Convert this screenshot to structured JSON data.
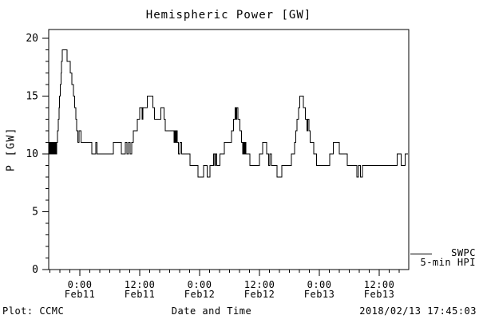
{
  "title": "Hemispheric Power [GW]",
  "axes": {
    "y_label": "P [GW]",
    "x_label": "Date and Time"
  },
  "footer": {
    "plot_source": "Plot: CCMC",
    "timestamp": "2018/02/13 17:45:03"
  },
  "legend": {
    "line1": "SWPC",
    "line2": "5-min HPI"
  },
  "colors": {
    "line": "#000000",
    "background": "#ffffff",
    "axis": "#000000"
  },
  "chart_data": {
    "type": "line",
    "title": "Hemispheric Power [GW]",
    "xlabel": "Date and Time",
    "ylabel": "P [GW]",
    "ylim": [
      0,
      20.75
    ],
    "y_major_ticks": [
      0,
      5,
      10,
      15,
      20
    ],
    "y_minor_step": 1,
    "x_range_hours": [
      0,
      72
    ],
    "x_window": "2018/02/10 17:45 to 2018/02/13 17:45",
    "x_minor_first_hour": 0.25,
    "x_minor_step_hours": 2,
    "x_major_ticks": [
      {
        "hour": 6.25,
        "time": "0:00",
        "date": "Feb11"
      },
      {
        "hour": 18.25,
        "time": "12:00",
        "date": "Feb11"
      },
      {
        "hour": 30.25,
        "time": "0:00",
        "date": "Feb12"
      },
      {
        "hour": 42.25,
        "time": "12:00",
        "date": "Feb12"
      },
      {
        "hour": 54.25,
        "time": "0:00",
        "date": "Feb13"
      },
      {
        "hour": 66.25,
        "time": "12:00",
        "date": "Feb13"
      }
    ],
    "grid": false,
    "legend_position": "outside-right-bottom",
    "series": [
      {
        "name": "SWPC 5-min HPI",
        "units": "GW",
        "points_format": "[hours_since_window_start, power_gw] step series",
        "points": [
          [
            0,
            10
          ],
          [
            0.16,
            11
          ],
          [
            0.32,
            10
          ],
          [
            0.48,
            11
          ],
          [
            0.64,
            10
          ],
          [
            0.8,
            11
          ],
          [
            0.96,
            10
          ],
          [
            1.12,
            11
          ],
          [
            1.28,
            10
          ],
          [
            1.44,
            11
          ],
          [
            1.55,
            10
          ],
          [
            1.6,
            11
          ],
          [
            1.76,
            12
          ],
          [
            1.92,
            13
          ],
          [
            2.08,
            14
          ],
          [
            2.16,
            15
          ],
          [
            2.32,
            16
          ],
          [
            2.48,
            17
          ],
          [
            2.56,
            18
          ],
          [
            2.72,
            19
          ],
          [
            3.68,
            18
          ],
          [
            4.32,
            17
          ],
          [
            4.64,
            16
          ],
          [
            4.96,
            15
          ],
          [
            5.2,
            14
          ],
          [
            5.44,
            13
          ],
          [
            5.6,
            12
          ],
          [
            5.84,
            11
          ],
          [
            6.08,
            12
          ],
          [
            6.48,
            11
          ],
          [
            8.64,
            10
          ],
          [
            9.44,
            11
          ],
          [
            9.68,
            10
          ],
          [
            12.96,
            11
          ],
          [
            14.56,
            10
          ],
          [
            15.36,
            11
          ],
          [
            15.68,
            10
          ],
          [
            16.0,
            11
          ],
          [
            16.32,
            10
          ],
          [
            16.64,
            11
          ],
          [
            16.96,
            12
          ],
          [
            17.76,
            13
          ],
          [
            18.24,
            14
          ],
          [
            18.72,
            13
          ],
          [
            18.88,
            14
          ],
          [
            19.76,
            15
          ],
          [
            20.88,
            14
          ],
          [
            21.2,
            13
          ],
          [
            22.48,
            14
          ],
          [
            23.12,
            13
          ],
          [
            23.36,
            12
          ],
          [
            25.12,
            11
          ],
          [
            25.28,
            12
          ],
          [
            25.44,
            11
          ],
          [
            25.6,
            12
          ],
          [
            25.76,
            11
          ],
          [
            26.0,
            10
          ],
          [
            26.32,
            11
          ],
          [
            26.64,
            10
          ],
          [
            28.32,
            9
          ],
          [
            29.92,
            8
          ],
          [
            31.04,
            9
          ],
          [
            31.76,
            8
          ],
          [
            32.32,
            9
          ],
          [
            33.04,
            10
          ],
          [
            33.28,
            9
          ],
          [
            33.44,
            10
          ],
          [
            33.68,
            9
          ],
          [
            34.32,
            10
          ],
          [
            35.2,
            11
          ],
          [
            36.64,
            12
          ],
          [
            37.04,
            13
          ],
          [
            37.36,
            14
          ],
          [
            37.55,
            13
          ],
          [
            37.7,
            14
          ],
          [
            37.92,
            13
          ],
          [
            38.32,
            12
          ],
          [
            38.64,
            11
          ],
          [
            38.88,
            10
          ],
          [
            39.04,
            11
          ],
          [
            39.2,
            10
          ],
          [
            39.36,
            11
          ],
          [
            39.52,
            10
          ],
          [
            40.32,
            9
          ],
          [
            42.24,
            10
          ],
          [
            42.88,
            11
          ],
          [
            43.68,
            10
          ],
          [
            44.08,
            9
          ],
          [
            44.32,
            10
          ],
          [
            44.64,
            9
          ],
          [
            45.76,
            8
          ],
          [
            46.72,
            9
          ],
          [
            48.64,
            10
          ],
          [
            49.28,
            11
          ],
          [
            49.52,
            12
          ],
          [
            49.76,
            13
          ],
          [
            50.08,
            14
          ],
          [
            50.32,
            15
          ],
          [
            51.04,
            14
          ],
          [
            51.44,
            13
          ],
          [
            51.76,
            12
          ],
          [
            51.92,
            13
          ],
          [
            52.16,
            12
          ],
          [
            52.4,
            11
          ],
          [
            53.12,
            10
          ],
          [
            53.68,
            9
          ],
          [
            56.32,
            10
          ],
          [
            57.04,
            11
          ],
          [
            58.24,
            10
          ],
          [
            59.84,
            9
          ],
          [
            61.76,
            8
          ],
          [
            62.08,
            9
          ],
          [
            62.48,
            8
          ],
          [
            62.88,
            9
          ],
          [
            69.84,
            10
          ],
          [
            70.64,
            9
          ],
          [
            71.44,
            10
          ]
        ]
      }
    ]
  }
}
